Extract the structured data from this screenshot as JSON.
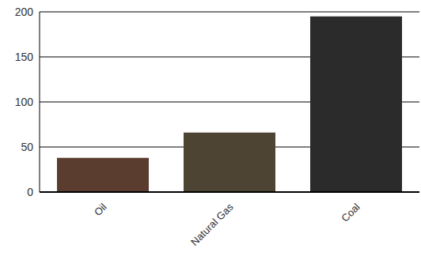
{
  "chart_data": {
    "type": "bar",
    "categories": [
      "Oil",
      "Natural Gas",
      "Coal"
    ],
    "values": [
      38,
      66,
      195
    ],
    "colors": [
      "#5a3d2e",
      "#4d4434",
      "#2b2b2b"
    ],
    "ylim": [
      0,
      200
    ],
    "yticks": [
      0,
      50,
      100,
      150,
      200
    ],
    "grid": true
  }
}
